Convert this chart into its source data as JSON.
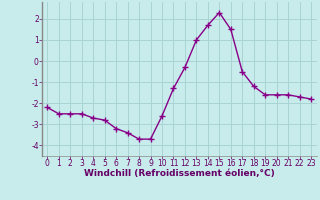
{
  "x": [
    0,
    1,
    2,
    3,
    4,
    5,
    6,
    7,
    8,
    9,
    10,
    11,
    12,
    13,
    14,
    15,
    16,
    17,
    18,
    19,
    20,
    21,
    22,
    23
  ],
  "y": [
    -2.2,
    -2.5,
    -2.5,
    -2.5,
    -2.7,
    -2.8,
    -3.2,
    -3.4,
    -3.7,
    -3.7,
    -2.6,
    -1.3,
    -0.3,
    1.0,
    1.7,
    2.3,
    1.5,
    -0.5,
    -1.2,
    -1.6,
    -1.6,
    -1.6,
    -1.7,
    -1.8
  ],
  "line_color": "#880088",
  "marker": "+",
  "marker_size": 4,
  "bg_color": "#c8ecec",
  "grid_color": "#aad4d4",
  "left_border_color": "#888888",
  "xlabel": "Windchill (Refroidissement éolien,°C)",
  "xlabel_color": "#660066",
  "tick_color": "#660066",
  "ylim": [
    -4.5,
    2.8
  ],
  "xlim": [
    -0.5,
    23.5
  ],
  "yticks": [
    -4,
    -3,
    -2,
    -1,
    0,
    1,
    2
  ],
  "xticks": [
    0,
    1,
    2,
    3,
    4,
    5,
    6,
    7,
    8,
    9,
    10,
    11,
    12,
    13,
    14,
    15,
    16,
    17,
    18,
    19,
    20,
    21,
    22,
    23
  ],
  "linewidth": 1.0,
  "tick_fontsize": 5.5,
  "xlabel_fontsize": 6.5
}
